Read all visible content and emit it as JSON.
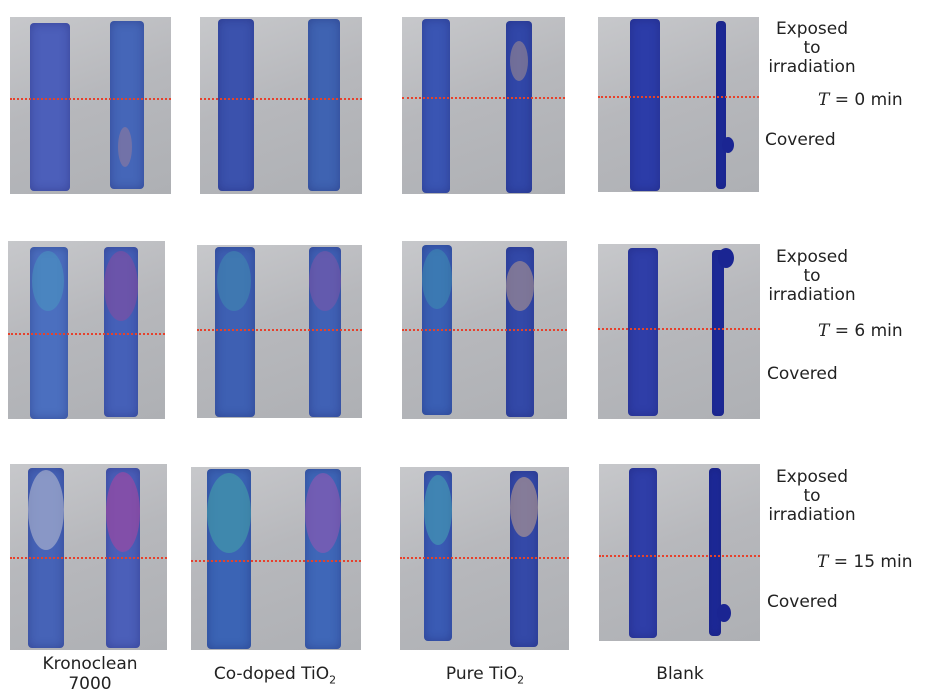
{
  "side_labels": {
    "exposed": [
      "Exposed",
      "to",
      "irradiation"
    ],
    "covered": "Covered"
  },
  "time_labels": [
    {
      "var": "T",
      "rest": " = 0 min"
    },
    {
      "var": "T",
      "rest": " = 6 min"
    },
    {
      "var": "T",
      "rest": " = 15 min"
    }
  ],
  "captions": [
    {
      "line1": "Kronoclean",
      "line2": "7000"
    },
    {
      "pre": "Co-doped TiO",
      "sub": "2"
    },
    {
      "pre": "Pure TiO",
      "sub": "2"
    },
    {
      "pre": "Blank"
    }
  ],
  "colors": {
    "tile": "#b8b9bd",
    "dye_blue": "#3b4fb5",
    "dye_dark": "#1c2a9a",
    "teal": "#3f8fb0",
    "violet": "#8a4a9e",
    "guide_line": "#e6422b"
  }
}
